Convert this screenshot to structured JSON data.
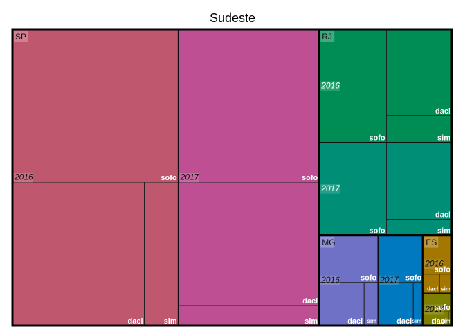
{
  "chart_data": {
    "type": "treemap",
    "title": "Sudeste",
    "children": [
      {
        "name": "SP",
        "children": [
          {
            "name": "2016",
            "color": "#bf576f",
            "children": [
              {
                "name": "sofo",
                "value": 52580
              },
              {
                "name": "dacl",
                "value": 39330
              },
              {
                "name": "sim",
                "value": 10143
              }
            ]
          },
          {
            "name": "2017",
            "color": "#bf4f93",
            "children": [
              {
                "name": "sofo",
                "value": 44660
              },
              {
                "name": "dacl",
                "value": 36134
              },
              {
                "name": "sim",
                "value": 5887
              }
            ]
          }
        ]
      },
      {
        "name": "RJ",
        "children": [
          {
            "name": "2016",
            "color": "#008d55",
            "children": [
              {
                "name": "sofo",
                "value": 15811
              },
              {
                "name": "dacl",
                "value": 11656
              },
              {
                "name": "sim",
                "value": 3666
              }
            ]
          },
          {
            "name": "2017",
            "color": "#008f76",
            "children": [
              {
                "name": "sofo",
                "value": 12998
              },
              {
                "name": "dacl",
                "value": 10434
              },
              {
                "name": "sim",
                "value": 2162
              }
            ]
          }
        ]
      },
      {
        "name": "MG",
        "children": [
          {
            "name": "2016",
            "color": "#6e71c6",
            "children": [
              {
                "name": "sofo",
                "value": 5780
              },
              {
                "name": "dacl",
                "value": 4030
              },
              {
                "name": "sim",
                "value": 1240
              }
            ]
          },
          {
            "name": "2017",
            "color": "#0079c0",
            "children": [
              {
                "name": "sofo",
                "value": 4420
              },
              {
                "name": "dacl",
                "value": 3162
              },
              {
                "name": "sim",
                "value": 868
              }
            ]
          }
        ]
      },
      {
        "name": "ES",
        "children": [
          {
            "name": "2016",
            "color": "#a47800",
            "children": [
              {
                "name": "sofo",
                "value": 2337
              },
              {
                "name": "dacl",
                "value": 656
              },
              {
                "name": "sim",
                "value": 492
              }
            ]
          },
          {
            "name": "2017",
            "color": "#7e7e00",
            "children": [
              {
                "name": "sofo",
                "value": 1125
              },
              {
                "name": "dacl",
                "value": 720
              },
              {
                "name": "sim",
                "value": 100
              }
            ]
          }
        ]
      }
    ]
  }
}
